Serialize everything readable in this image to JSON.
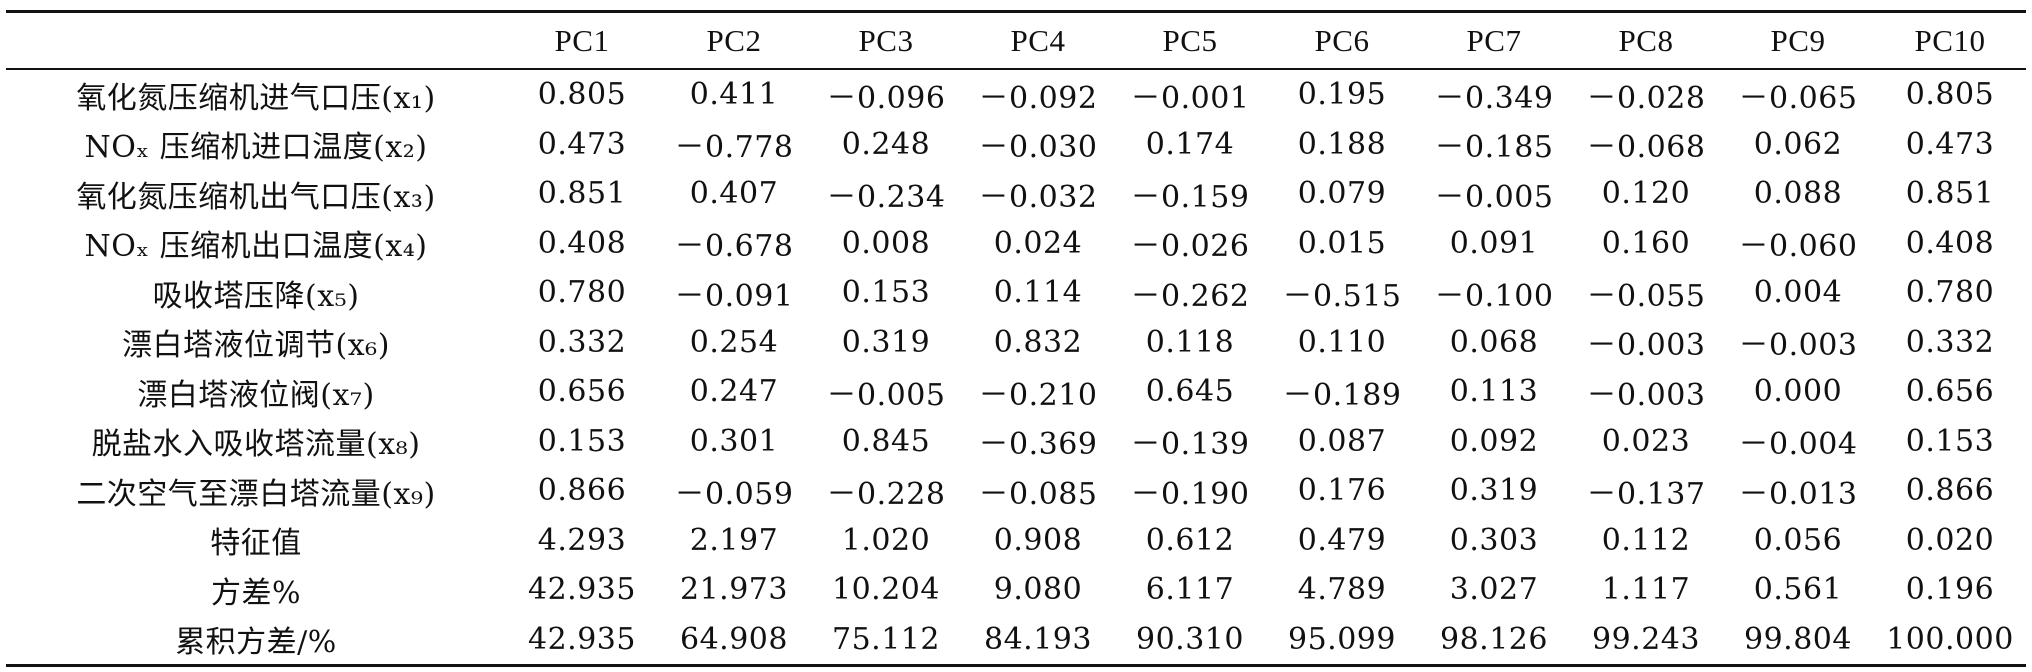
{
  "table": {
    "headers": [
      "",
      "PC1",
      "PC2",
      "PC3",
      "PC4",
      "PC5",
      "PC6",
      "PC7",
      "PC8",
      "PC9",
      "PC10"
    ],
    "rows": [
      {
        "label": "氧化氮压缩机进气口压(x₁)",
        "values": [
          "0.805",
          "0.411",
          "－0.096",
          "－0.092",
          "－0.001",
          "0.195",
          "－0.349",
          "－0.028",
          "－0.065",
          "0.805"
        ]
      },
      {
        "label": "NOₓ 压缩机进口温度(x₂)",
        "values": [
          "0.473",
          "－0.778",
          "0.248",
          "－0.030",
          "0.174",
          "0.188",
          "－0.185",
          "－0.068",
          "0.062",
          "0.473"
        ]
      },
      {
        "label": "氧化氮压缩机出气口压(x₃)",
        "values": [
          "0.851",
          "0.407",
          "－0.234",
          "－0.032",
          "－0.159",
          "0.079",
          "－0.005",
          "0.120",
          "0.088",
          "0.851"
        ]
      },
      {
        "label": "NOₓ 压缩机出口温度(x₄)",
        "values": [
          "0.408",
          "－0.678",
          "0.008",
          "0.024",
          "－0.026",
          "0.015",
          "0.091",
          "0.160",
          "－0.060",
          "0.408"
        ]
      },
      {
        "label": "吸收塔压降(x₅)",
        "values": [
          "0.780",
          "－0.091",
          "0.153",
          "0.114",
          "－0.262",
          "－0.515",
          "－0.100",
          "－0.055",
          "0.004",
          "0.780"
        ]
      },
      {
        "label": "漂白塔液位调节(x₆)",
        "values": [
          "0.332",
          "0.254",
          "0.319",
          "0.832",
          "0.118",
          "0.110",
          "0.068",
          "－0.003",
          "－0.003",
          "0.332"
        ]
      },
      {
        "label": "漂白塔液位阀(x₇)",
        "values": [
          "0.656",
          "0.247",
          "－0.005",
          "－0.210",
          "0.645",
          "－0.189",
          "0.113",
          "－0.003",
          "0.000",
          "0.656"
        ]
      },
      {
        "label": "脱盐水入吸收塔流量(x₈)",
        "values": [
          "0.153",
          "0.301",
          "0.845",
          "－0.369",
          "－0.139",
          "0.087",
          "0.092",
          "0.023",
          "－0.004",
          "0.153"
        ]
      },
      {
        "label": "二次空气至漂白塔流量(x₉)",
        "values": [
          "0.866",
          "－0.059",
          "－0.228",
          "－0.085",
          "－0.190",
          "0.176",
          "0.319",
          "－0.137",
          "－0.013",
          "0.866"
        ]
      },
      {
        "label": "特征值",
        "values": [
          "4.293",
          "2.197",
          "1.020",
          "0.908",
          "0.612",
          "0.479",
          "0.303",
          "0.112",
          "0.056",
          "0.020"
        ]
      },
      {
        "label": "方差%",
        "values": [
          "42.935",
          "21.973",
          "10.204",
          "9.080",
          "6.117",
          "4.789",
          "3.027",
          "1.117",
          "0.561",
          "0.196"
        ]
      },
      {
        "label": "累积方差/%",
        "values": [
          "42.935",
          "64.908",
          "75.112",
          "84.193",
          "90.310",
          "95.099",
          "98.126",
          "99.243",
          "99.804",
          "100.000"
        ]
      }
    ]
  }
}
